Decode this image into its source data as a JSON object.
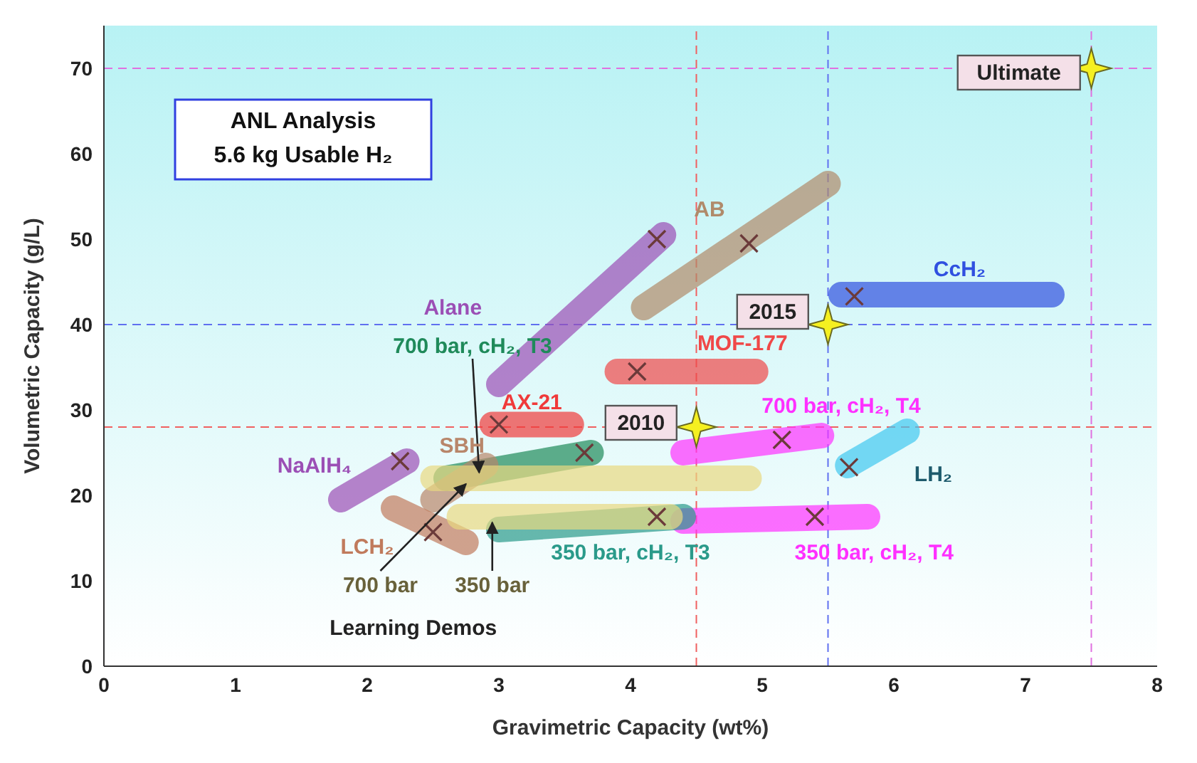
{
  "chart_data": {
    "type": "line",
    "title": "ANL Analysis",
    "subtitle": "5.6 kg Usable H₂",
    "xlabel": "Gravimetric Capacity (wt%)",
    "ylabel": "Volumetric Capacity (g/L)",
    "xlim": [
      0,
      8
    ],
    "xticks": [
      0,
      1,
      2,
      3,
      4,
      5,
      6,
      7,
      8
    ],
    "ylim": [
      0,
      75
    ],
    "yticks": [
      0,
      10,
      20,
      30,
      40,
      50,
      60,
      70
    ],
    "grid": false,
    "legend": false,
    "line_style": "solid",
    "marker": "none",
    "series": [
      {
        "name": "Alane",
        "color": "#9b4fb5",
        "x": [
          3.0,
          4.25
        ],
        "values": [
          33,
          50.5
        ]
      },
      {
        "name": "AB",
        "color": "#b08a6a",
        "x": [
          4.1,
          5.5
        ],
        "values": [
          42,
          56.5
        ]
      },
      {
        "name": "CcH₂",
        "color": "#3050e0",
        "x": [
          5.6,
          7.2
        ],
        "values": [
          43.5,
          43.5
        ]
      },
      {
        "name": "MOF-177",
        "color": "#f04848",
        "x": [
          3.9,
          4.95
        ],
        "values": [
          34.5,
          34.5
        ]
      },
      {
        "name": "AX-21",
        "color": "#f03a3a",
        "x": [
          2.95,
          3.55
        ],
        "values": [
          28.3,
          28.3
        ]
      },
      {
        "name": "700 bar, cH₂, T4",
        "color": "#ff30ff",
        "x": [
          4.4,
          5.45
        ],
        "values": [
          25,
          27
        ]
      },
      {
        "name": "LH₂",
        "color": "#40c8f0",
        "x": [
          5.65,
          6.1
        ],
        "values": [
          23.5,
          27.5
        ]
      },
      {
        "name": "350 bar, cH₂, T4",
        "color": "#ff30ff",
        "x": [
          4.4,
          5.8
        ],
        "values": [
          17,
          17.5
        ]
      },
      {
        "name": "350 bar, cH₂, T3",
        "color": "#2a9a8a",
        "x": [
          3.0,
          4.4
        ],
        "values": [
          16,
          17.5
        ]
      },
      {
        "name": "700 bar, cH₂, T3",
        "color": "#1f8a5a",
        "x": [
          2.6,
          3.7
        ],
        "values": [
          22,
          25
        ]
      },
      {
        "name": "NaAlH₄",
        "color": "#9b4fb5",
        "x": [
          1.8,
          2.3
        ],
        "values": [
          19.5,
          24
        ]
      },
      {
        "name": "SBH",
        "color": "#b8866a",
        "x": [
          2.5,
          2.9
        ],
        "values": [
          19.5,
          23.5
        ]
      },
      {
        "name": "LCH₂",
        "color": "#c07a5c",
        "x": [
          2.2,
          2.75
        ],
        "values": [
          18.5,
          14.5
        ]
      },
      {
        "name": "700 bar",
        "color": "#e8d880",
        "x": [
          2.5,
          4.9
        ],
        "values": [
          22,
          22
        ]
      },
      {
        "name": "350 bar",
        "color": "#e8d880",
        "x": [
          2.7,
          4.3
        ],
        "values": [
          17.5,
          17.5
        ]
      },
      {
        "type": "scatter",
        "marker": "cross",
        "color": "#6b3a3a",
        "x": [
          4.2,
          4.9,
          5.7,
          4.05,
          3.0,
          5.15,
          5.66,
          5.4,
          4.2,
          3.65,
          2.25,
          2.5
        ],
        "values": [
          50,
          49.5,
          43.3,
          34.5,
          28.3,
          26.5,
          23.3,
          17.5,
          17.5,
          25,
          24,
          15.7
        ]
      },
      {
        "type": "scatter",
        "marker": "star",
        "name": "2010",
        "color": "#f5f020",
        "x": [
          4.5
        ],
        "values": [
          28
        ]
      },
      {
        "type": "scatter",
        "marker": "star",
        "name": "2015",
        "color": "#f5f020",
        "x": [
          5.5
        ],
        "values": [
          40
        ]
      },
      {
        "type": "scatter",
        "marker": "star",
        "name": "Ultimate",
        "color": "#f5f020",
        "x": [
          7.5
        ],
        "values": [
          70
        ]
      }
    ],
    "ref_lines": [
      {
        "axis": "x",
        "value": 4.5,
        "color": "#f06060",
        "line_style": "dashed"
      },
      {
        "axis": "y",
        "value": 28,
        "color": "#f06060",
        "line_style": "dashed"
      },
      {
        "axis": "x",
        "value": 5.5,
        "color": "#6070f0",
        "line_style": "dashed"
      },
      {
        "axis": "y",
        "value": 40,
        "color": "#6070f0",
        "line_style": "dashed"
      },
      {
        "axis": "x",
        "value": 7.5,
        "color": "#e070e0",
        "line_style": "dashed"
      },
      {
        "axis": "y",
        "value": 70,
        "color": "#e070e0",
        "line_style": "dashed"
      }
    ],
    "annotations": [
      "Learning Demos"
    ]
  }
}
